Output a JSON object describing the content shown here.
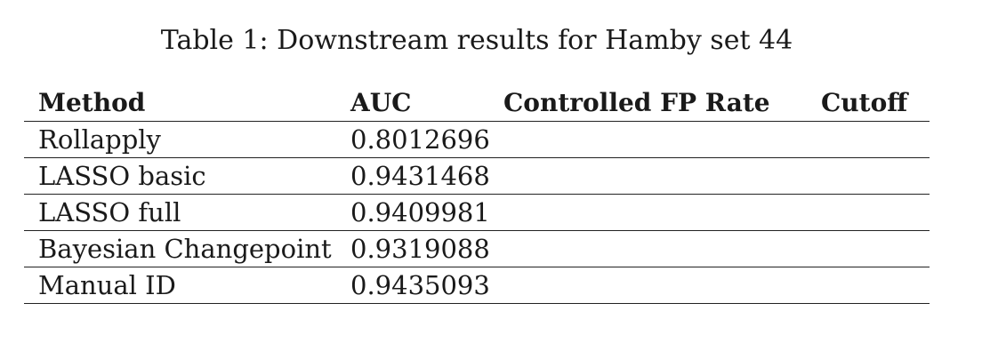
{
  "caption": "Table 1: Downstream results for Hamby set 44",
  "table": {
    "headers": [
      "Method",
      "AUC",
      "Controlled FP Rate",
      "Cutoff"
    ],
    "rows": [
      [
        "Rollapply",
        "0.8012696",
        "",
        ""
      ],
      [
        "LASSO basic",
        "0.9431468",
        "",
        ""
      ],
      [
        "LASSO full",
        "0.9409981",
        "",
        ""
      ],
      [
        "Bayesian Changepoint",
        "0.9319088",
        "",
        ""
      ],
      [
        "Manual ID",
        "0.9435093",
        "",
        ""
      ]
    ]
  }
}
